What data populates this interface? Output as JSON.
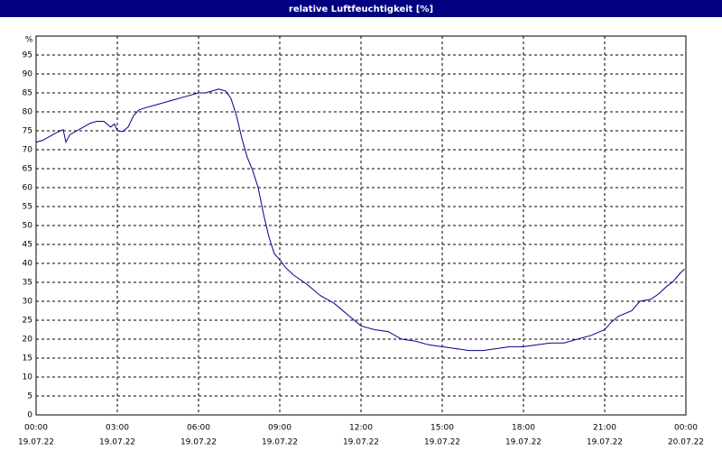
{
  "chart_data": {
    "type": "line",
    "title": "relative Luftfeuchtigkeit [%]",
    "y_label": "%",
    "series": [
      {
        "name": "relative Luftfeuchtigkeit",
        "color": "#00008b",
        "x": [
          0,
          0.25,
          0.5,
          0.75,
          1.0,
          1.1,
          1.25,
          1.5,
          1.75,
          2.0,
          2.25,
          2.5,
          2.75,
          2.9,
          3.0,
          3.2,
          3.4,
          3.6,
          3.8,
          4.0,
          4.5,
          5.0,
          5.5,
          6.0,
          6.25,
          6.5,
          6.75,
          7.0,
          7.2,
          7.4,
          7.6,
          7.8,
          8.0,
          8.2,
          8.4,
          8.6,
          8.8,
          9.0,
          9.2,
          9.5,
          10,
          10.5,
          11,
          11.5,
          12,
          12.5,
          13,
          13.5,
          14,
          14.5,
          15,
          15.5,
          16,
          16.5,
          17,
          17.5,
          18,
          18.5,
          19,
          19.5,
          20,
          20.5,
          21,
          21.25,
          21.5,
          22,
          22.3,
          22.7,
          23,
          23.3,
          23.5,
          23.8,
          23.95
        ],
        "values": [
          72,
          72.5,
          73.5,
          74.5,
          75.3,
          72,
          74,
          75,
          76,
          77,
          77.5,
          77.5,
          76,
          76.8,
          75,
          74.8,
          76,
          79,
          80.5,
          81,
          82,
          83,
          84,
          85,
          85,
          85.5,
          86,
          85.5,
          83.5,
          79,
          73,
          68,
          64.5,
          60,
          53,
          47,
          42.5,
          41,
          39,
          37,
          34.5,
          31.5,
          29.5,
          26.5,
          23.5,
          22.5,
          22,
          20,
          19.5,
          18.5,
          18,
          17.5,
          17,
          17,
          17.5,
          18,
          18,
          18.5,
          19,
          19,
          20,
          21,
          22.5,
          24.5,
          26,
          27.5,
          30,
          30.5,
          32,
          34,
          35,
          37.5,
          38.5
        ]
      }
    ],
    "xlim": [
      0,
      24
    ],
    "xticks": [
      {
        "value": 0,
        "label": "00:00"
      },
      {
        "value": 3,
        "label": "03:00"
      },
      {
        "value": 6,
        "label": "06:00"
      },
      {
        "value": 9,
        "label": "09:00"
      },
      {
        "value": 12,
        "label": "12:00"
      },
      {
        "value": 15,
        "label": "15:00"
      },
      {
        "value": 18,
        "label": "18:00"
      },
      {
        "value": 21,
        "label": "21:00"
      },
      {
        "value": 24,
        "label": "00:00"
      }
    ],
    "xtick_dates": [
      "19.07.22",
      "19.07.22",
      "19.07.22",
      "19.07.22",
      "19.07.22",
      "19.07.22",
      "19.07.22",
      "19.07.22",
      "20.07.22"
    ],
    "ylim": [
      0,
      100
    ],
    "yticks": [
      0,
      5,
      10,
      15,
      20,
      25,
      30,
      35,
      40,
      45,
      50,
      55,
      60,
      65,
      70,
      75,
      80,
      85,
      90,
      95
    ],
    "grid": true
  }
}
